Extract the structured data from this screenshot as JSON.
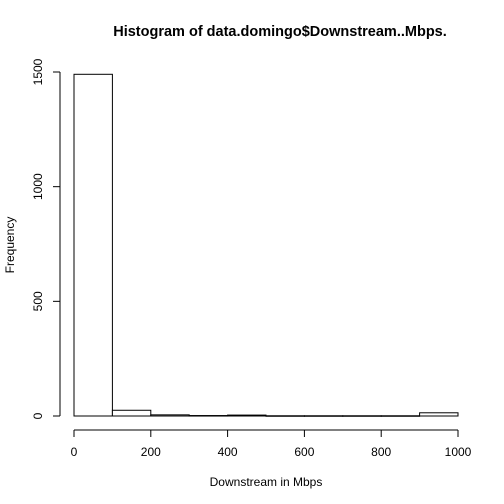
{
  "chart_data": {
    "type": "bar",
    "title": "Histogram of data.domingo$Downstream..Mbps.",
    "xlabel": "Downstream in Mbps",
    "ylabel": "Frequency",
    "bins": [
      {
        "start": 0,
        "end": 100,
        "count": 1490
      },
      {
        "start": 100,
        "end": 200,
        "count": 25
      },
      {
        "start": 200,
        "end": 300,
        "count": 5
      },
      {
        "start": 300,
        "end": 400,
        "count": 2
      },
      {
        "start": 400,
        "end": 500,
        "count": 4
      },
      {
        "start": 500,
        "end": 600,
        "count": 1
      },
      {
        "start": 600,
        "end": 700,
        "count": 1
      },
      {
        "start": 700,
        "end": 800,
        "count": 1
      },
      {
        "start": 800,
        "end": 900,
        "count": 1
      },
      {
        "start": 900,
        "end": 1000,
        "count": 14
      }
    ],
    "xlim": [
      0,
      1000
    ],
    "ylim": [
      0,
      1500
    ],
    "x_ticks": [
      0,
      200,
      400,
      600,
      800,
      1000
    ],
    "y_ticks": [
      0,
      500,
      1000,
      1500
    ],
    "grid": false,
    "colors": {
      "bar_fill": "#ffffff",
      "bar_stroke": "#000000"
    }
  }
}
